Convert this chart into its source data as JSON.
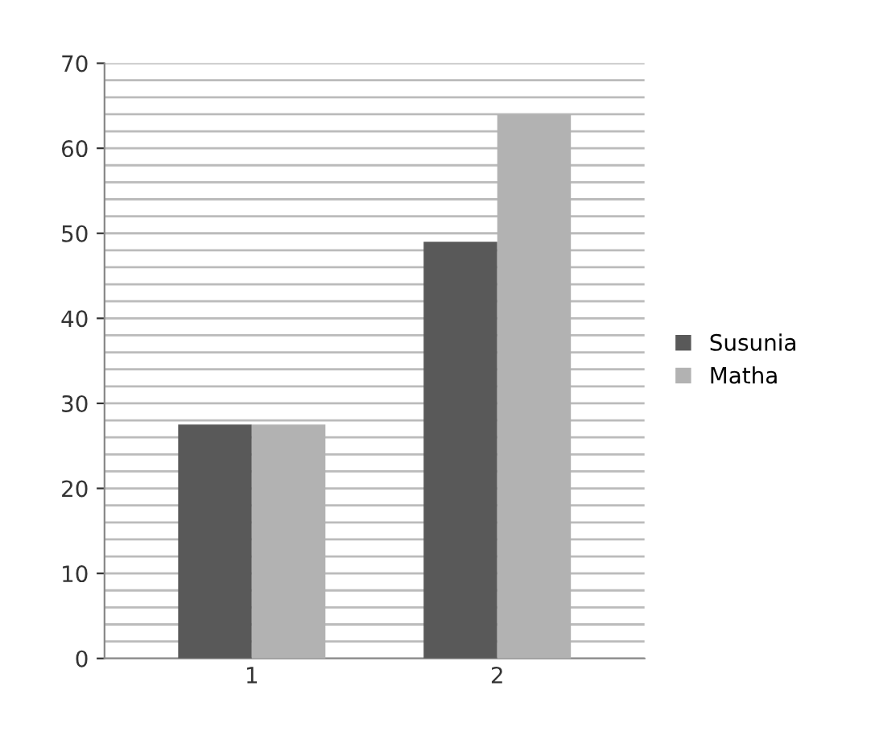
{
  "chart_data": {
    "type": "bar",
    "categories": [
      "1",
      "2"
    ],
    "series": [
      {
        "name": "Susunia",
        "color": "#595959",
        "values": [
          27.5,
          49
        ]
      },
      {
        "name": "Matha",
        "color": "#b2b2b2",
        "values": [
          27.5,
          64
        ]
      }
    ],
    "ylim": [
      0,
      70
    ],
    "yticks": [
      0,
      {
        "value": 2,
        "label": null
      },
      {
        "value": 4,
        "label": null
      },
      {
        "value": 6,
        "label": null
      },
      {
        "value": 8,
        "label": null
      },
      10,
      {
        "value": 12,
        "label": null
      },
      {
        "value": 14,
        "label": null
      },
      {
        "value": 16,
        "label": null
      },
      {
        "value": 18,
        "label": null
      },
      20,
      {
        "value": 22,
        "label": null
      },
      {
        "value": 24,
        "label": null
      },
      {
        "value": 26,
        "label": null
      },
      {
        "value": 28,
        "label": null
      },
      30,
      {
        "value": 32,
        "label": null
      },
      {
        "value": 34,
        "label": null
      },
      {
        "value": 36,
        "label": null
      },
      {
        "value": 38,
        "label": null
      },
      40,
      {
        "value": 42,
        "label": null
      },
      {
        "value": 44,
        "label": null
      },
      {
        "value": 46,
        "label": null
      },
      {
        "value": 48,
        "label": null
      },
      50,
      {
        "value": 52,
        "label": null
      },
      {
        "value": 54,
        "label": null
      },
      {
        "value": 56,
        "label": null
      },
      {
        "value": 58,
        "label": null
      },
      60,
      {
        "value": 62,
        "label": null
      },
      {
        "value": 64,
        "label": null
      },
      {
        "value": 66,
        "label": null
      },
      {
        "value": 68,
        "label": null
      },
      70
    ],
    "grid": "y",
    "legend": "right"
  }
}
